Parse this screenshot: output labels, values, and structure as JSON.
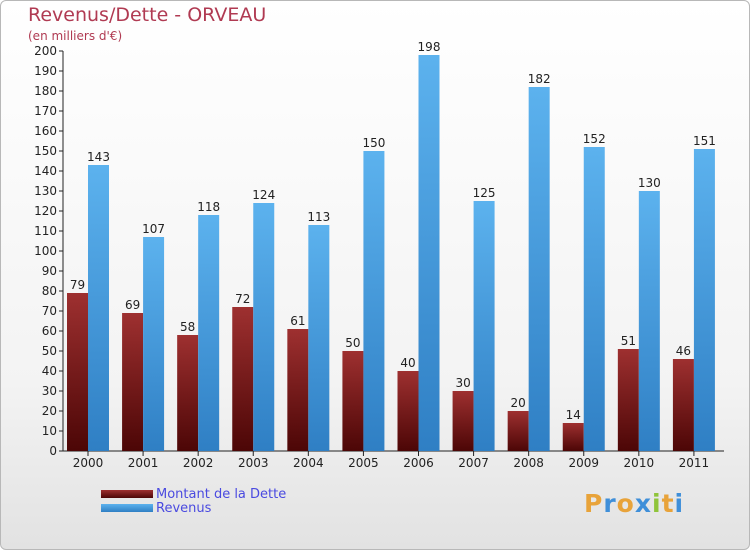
{
  "chart_data": {
    "type": "bar",
    "title": "Revenus/Dette - ORVEAU",
    "subtitle": "(en milliers d'€)",
    "categories": [
      "2000",
      "2001",
      "2002",
      "2003",
      "2004",
      "2005",
      "2006",
      "2007",
      "2008",
      "2009",
      "2010",
      "2011"
    ],
    "series": [
      {
        "name": "Montant de la Dette",
        "color": "#7a1212",
        "values": [
          79,
          69,
          58,
          72,
          61,
          50,
          40,
          30,
          20,
          14,
          51,
          46
        ]
      },
      {
        "name": "Revenus",
        "color": "#4aa3e6",
        "values": [
          143,
          107,
          118,
          124,
          113,
          150,
          198,
          125,
          182,
          152,
          130,
          151
        ]
      }
    ],
    "ylim": [
      0,
      200
    ],
    "ytick_step": 10,
    "grid": false,
    "legend_position": "bottom-left"
  },
  "logo": {
    "letters": [
      "P",
      "r",
      "o",
      "x",
      "i",
      "t",
      "i"
    ],
    "colors": [
      "#e8a33a",
      "#3f8fd9",
      "#e8a33a",
      "#3f8fd9",
      "#8fc43a",
      "#e8a33a",
      "#3f8fd9"
    ]
  }
}
